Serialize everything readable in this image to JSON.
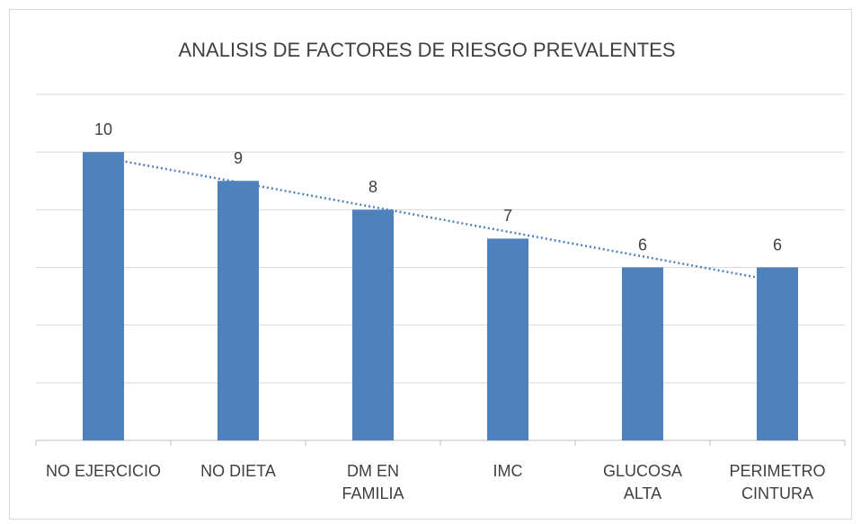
{
  "chart_data": {
    "type": "bar",
    "title": "ANALISIS DE FACTORES DE RIESGO PREVALENTES",
    "categories": [
      "NO EJERCICIO",
      "NO DIETA",
      "DM  EN\nFAMILIA",
      "IMC",
      "GLUCOSA\nALTA",
      "PERIMETRO\nCINTURA"
    ],
    "values": [
      10,
      9,
      8,
      7,
      6,
      6
    ],
    "color": "#4f81bd",
    "ylim": [
      0,
      12
    ],
    "yticks": [
      0,
      2,
      4,
      6,
      8,
      10,
      12
    ],
    "grid": true,
    "trendline": {
      "type": "linear",
      "color": "#4f81bd"
    }
  }
}
